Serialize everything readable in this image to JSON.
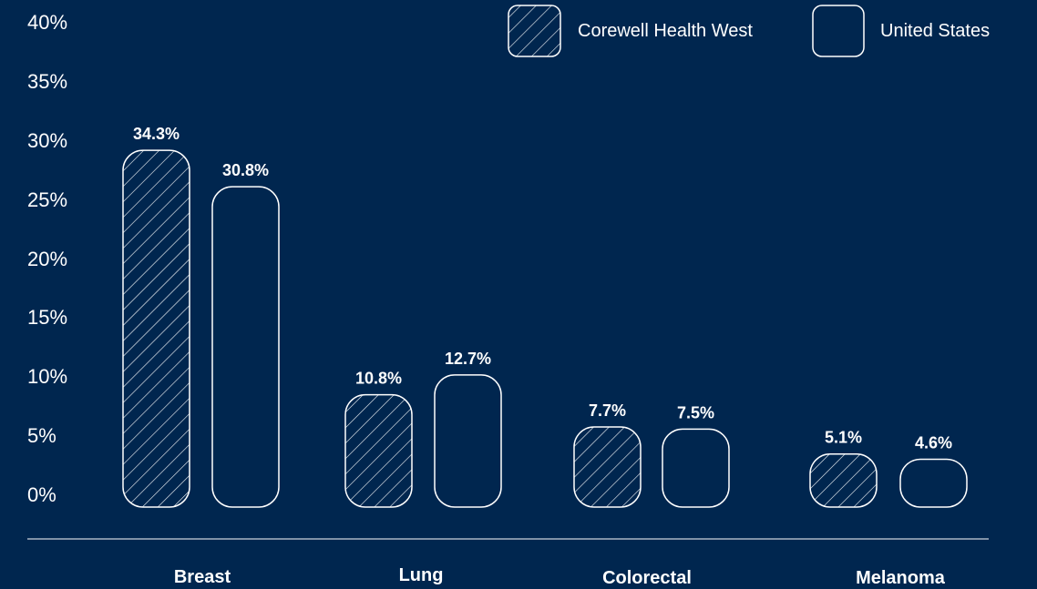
{
  "chart_data": {
    "type": "bar",
    "categories": [
      "Breast",
      "Lung",
      "Colorectal",
      "Melanoma"
    ],
    "series": [
      {
        "name": "Corewell Health West",
        "values": [
          34.3,
          10.8,
          7.7,
          5.1
        ],
        "labels": [
          "34.3%",
          "10.8%",
          "7.7%",
          "5.1%"
        ],
        "fill": "hatched"
      },
      {
        "name": "United States",
        "values": [
          30.8,
          12.7,
          7.5,
          4.6
        ],
        "labels": [
          "30.8%",
          "12.7%",
          "7.5%",
          "4.6%"
        ],
        "fill": "outline"
      }
    ],
    "yticks": [
      "0%",
      "5%",
      "10%",
      "15%",
      "20%",
      "25%",
      "30%",
      "35%",
      "40%"
    ],
    "ylim": [
      0,
      40
    ],
    "grid": false,
    "legend_position": "top-right"
  },
  "colors": {
    "background": "#00264f",
    "foreground": "#ffffff"
  }
}
